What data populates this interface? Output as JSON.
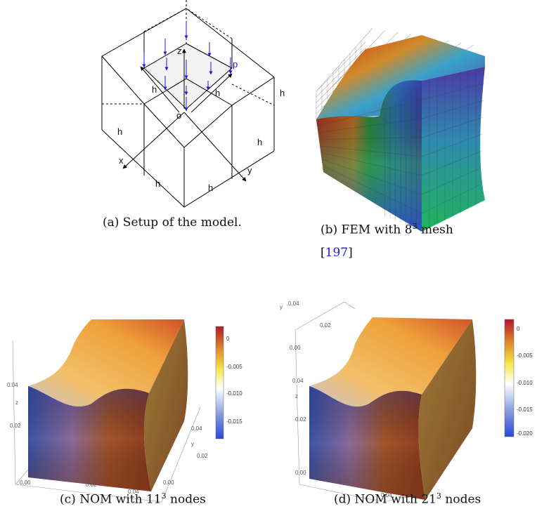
{
  "panel_a": {
    "labels": {
      "z": "z",
      "p": "p",
      "o": "o",
      "x": "x",
      "y": "y",
      "h": [
        "h",
        "h",
        "h",
        "h",
        "h",
        "h",
        "h"
      ]
    },
    "caption": "(a) Setup of the model."
  },
  "panel_b": {
    "caption": [
      {
        "text": "(b) FEM with 8"
      },
      {
        "text": "3",
        "sup": true
      },
      {
        "text": " mesh"
      },
      {
        "text": "["
      },
      {
        "text": "197",
        "link": true
      },
      {
        "text": "]"
      }
    ]
  },
  "panel_c": {
    "axis_labels": {
      "z": "z",
      "y": "y"
    },
    "z_ticks": [
      "0.04",
      "0.02",
      "0.00"
    ],
    "x_ticks": [
      "0.00",
      "0.02",
      "0.04"
    ],
    "y_ticks": [
      "0.04",
      "0.02",
      "0.00"
    ],
    "colorbar_ticks": [
      "0",
      "-0.005",
      "-0.010",
      "-0.015"
    ],
    "caption": [
      {
        "text": "(c) NOM with 11"
      },
      {
        "text": "3",
        "sup": true
      },
      {
        "text": " nodes"
      }
    ]
  },
  "panel_d": {
    "axis_labels": {
      "z": "z",
      "y": "y",
      "x": "x"
    },
    "z_ticks": [
      "0.04",
      "0.02",
      "0.00"
    ],
    "x_ticks": [
      "0.02",
      "0.04"
    ],
    "y_ticks": [
      "0.04",
      "0.02",
      "0.00"
    ],
    "colorbar_ticks": [
      "0",
      "-0.005",
      "-0.010",
      "-0.015",
      "-0.020"
    ],
    "caption": [
      {
        "text": "(d) NOM with 21"
      },
      {
        "text": "3",
        "sup": true
      },
      {
        "text": " nodes"
      }
    ]
  }
}
